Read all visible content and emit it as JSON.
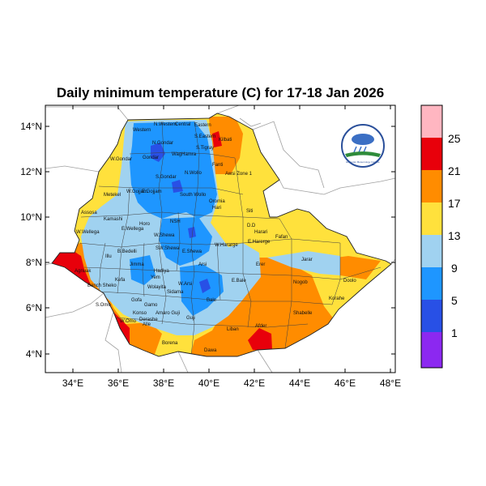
{
  "title": "Daily minimum temperature (C) for 17-18 Jan 2026",
  "axes": {
    "lat_ticks": [
      "4°N",
      "6°N",
      "8°N",
      "10°N",
      "12°N",
      "14°N"
    ],
    "lon_ticks": [
      "34°E",
      "36°E",
      "38°E",
      "40°E",
      "42°E",
      "44°E",
      "46°E",
      "48°E"
    ]
  },
  "colorbar": {
    "labels": [
      "25",
      "21",
      "17",
      "13",
      "9",
      "5",
      "1"
    ],
    "colors": [
      "#ffb6c1",
      "#e8000b",
      "#ff8c00",
      "#ffe13c",
      "#a0d2f0",
      "#1e96ff",
      "#2850e6",
      "#8c28f0"
    ]
  },
  "logo_text": "Ethiopian Meteorology Institute",
  "zones": {
    "n_western": "N.Western",
    "central": "Central",
    "eastern": "Eastern",
    "western": "Western",
    "n_gondar": "N.Gondar",
    "s_eastern": "S.Eastern",
    "kilbati": "Kilbati",
    "waghamra": "WagHamra",
    "s_tigray": "S.Tigray",
    "w_gondar": "W.Gondar",
    "gondar": "Gondar",
    "s_gondar": "S.Gondar",
    "n_wollo": "N.Wollo",
    "fanti": "Fanti",
    "awsi_zone1": "Awsi Zone 1",
    "metekel": "Metekel",
    "w_gojjam": "W.Gojjam",
    "e_gojjam": "E.Gojjam",
    "south_wollo": "South Wollo",
    "oromia": "Oromia",
    "hari": "Hari",
    "assosa": "Assosa",
    "kamashi": "Kamashi",
    "horo": "Horo",
    "nsh": "NSH",
    "siti": "Siti",
    "dd": "D.D",
    "harari": "Harari",
    "w_wellega": "W.Wellega",
    "e_wellega": "E.Wellega",
    "w_shewa": "W.Shewa",
    "e_harerge": "E.Harerge",
    "w_hararge": "W.Hararge",
    "fafan": "Fafan",
    "b_bedelli": "B.Bedelli",
    "illu": "Illu",
    "sw_shewa": "SW.Shewa",
    "e_shewa": "E.Shewa",
    "jimma": "Jimma",
    "arsi": "Arsi",
    "erer": "Erer",
    "jarar": "Jarar",
    "doolo": "Doolo",
    "agnuak": "Agnuak",
    "kefa": "Kefa",
    "hadiya": "Hadiya",
    "yem": "Yem",
    "e_bale": "E.Bale",
    "nogob": "Nogob",
    "bench_sheko": "Bench Sheko",
    "wolayita": "Wolayita",
    "w_arsi": "W.Arsi",
    "sidama": "Sidama",
    "s_omo": "S.Omo",
    "gamo": "Gamo",
    "bale": "Bale",
    "korahe": "Korahe",
    "gofa": "Gofa",
    "amaro_guji": "Amaro Guji",
    "shabelle": "Shabelle",
    "konso": "Konso",
    "derashe": "Derashe",
    "guji": "Guji",
    "liban": "Liban",
    "alle": "Alle",
    "w_omo": "W.Omo",
    "afder": "Afder",
    "borena": "Borena",
    "dawa": "Dawa"
  }
}
